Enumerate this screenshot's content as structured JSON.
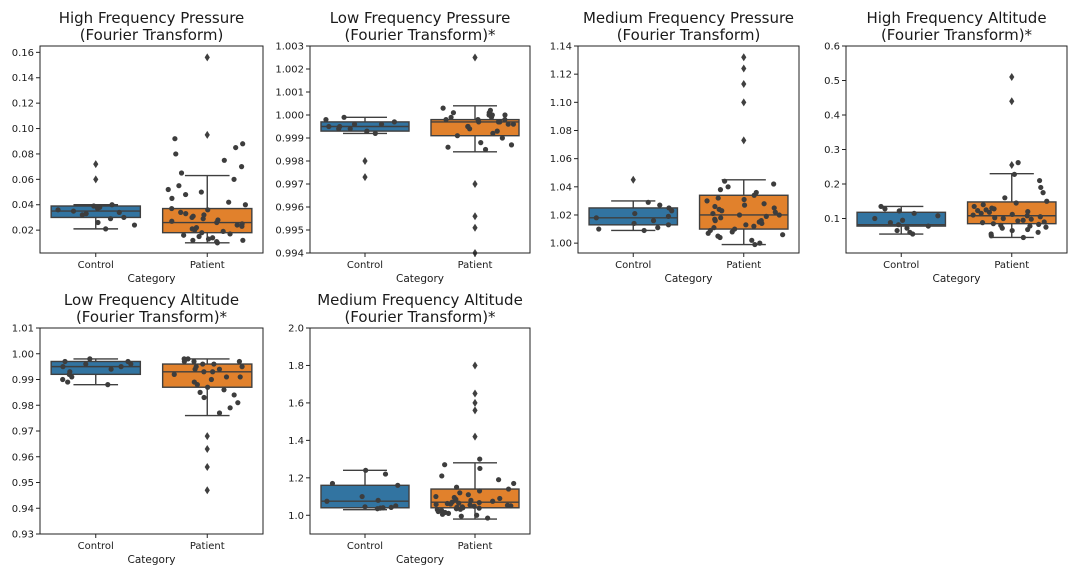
{
  "figure": {
    "background": "#ffffff",
    "colors": {
      "Control": "#3274a1",
      "Patient": "#e1812c",
      "points": "#3d3d3d",
      "lines": "#3f3f3f"
    }
  },
  "chart_data": [
    {
      "type": "box",
      "title": [
        "High Frequency Pressure",
        "(Fourier Transform)"
      ],
      "xlabel": "Category",
      "categories": [
        "Control",
        "Patient"
      ],
      "ylim": [
        0.002,
        0.165
      ],
      "yticks": [
        0.02,
        0.04,
        0.06,
        0.08,
        0.1,
        0.12,
        0.14,
        0.16
      ],
      "ytick_labels": [
        "0.02",
        "0.04",
        "0.06",
        "0.08",
        "0.10",
        "0.12",
        "0.14",
        "0.16"
      ],
      "boxes": [
        {
          "category": "Control",
          "q1": 0.03,
          "median": 0.035,
          "q3": 0.039,
          "whisker_low": 0.021,
          "whisker_high": 0.04,
          "outliers": [
            0.06,
            0.072
          ],
          "points": [
            0.021,
            0.024,
            0.026,
            0.029,
            0.03,
            0.032,
            0.033,
            0.034,
            0.035,
            0.036,
            0.037,
            0.038,
            0.039,
            0.04
          ]
        },
        {
          "category": "Patient",
          "q1": 0.018,
          "median": 0.026,
          "q3": 0.037,
          "whisker_low": 0.01,
          "whisker_high": 0.063,
          "outliers": [
            0.095,
            0.156
          ],
          "points": [
            0.01,
            0.011,
            0.012,
            0.012,
            0.013,
            0.014,
            0.015,
            0.016,
            0.017,
            0.018,
            0.019,
            0.02,
            0.021,
            0.022,
            0.023,
            0.024,
            0.025,
            0.026,
            0.027,
            0.028,
            0.029,
            0.03,
            0.031,
            0.032,
            0.033,
            0.034,
            0.036,
            0.037,
            0.04,
            0.042,
            0.045,
            0.048,
            0.05,
            0.052,
            0.055,
            0.06,
            0.065,
            0.07,
            0.075,
            0.08,
            0.085,
            0.088,
            0.092
          ]
        }
      ]
    },
    {
      "type": "box",
      "title": [
        "Low Frequency Pressure",
        "(Fourier Transform)*"
      ],
      "xlabel": "Category",
      "categories": [
        "Control",
        "Patient"
      ],
      "ylim": [
        0.994,
        1.003
      ],
      "yticks": [
        0.994,
        0.995,
        0.996,
        0.997,
        0.998,
        0.999,
        1.0,
        1.001,
        1.002,
        1.003
      ],
      "ytick_labels": [
        "0.994",
        "0.995",
        "0.996",
        "0.997",
        "0.998",
        "0.999",
        "1.000",
        "1.001",
        "1.002",
        "1.003"
      ],
      "boxes": [
        {
          "category": "Control",
          "q1": 0.9993,
          "median": 0.9995,
          "q3": 0.9997,
          "whisker_low": 0.9992,
          "whisker_high": 0.9999,
          "outliers": [
            0.998,
            0.9973
          ],
          "points": [
            0.9992,
            0.9993,
            0.9994,
            0.9994,
            0.9995,
            0.9995,
            0.9996,
            0.9996,
            0.9997,
            0.9998,
            0.9999
          ]
        },
        {
          "category": "Patient",
          "q1": 0.9991,
          "median": 0.9997,
          "q3": 0.9998,
          "whisker_low": 0.9984,
          "whisker_high": 1.0004,
          "outliers": [
            0.997,
            0.9956,
            0.9951,
            0.994,
            1.0025
          ],
          "points": [
            0.9985,
            0.9986,
            0.9987,
            0.9988,
            0.999,
            0.9991,
            0.9992,
            0.9993,
            0.9994,
            0.9995,
            0.9995,
            0.9996,
            0.9996,
            0.9997,
            0.9997,
            0.9997,
            0.9998,
            0.9998,
            0.9998,
            0.9999,
            0.9999,
            1.0,
            1.0,
            1.0,
            1.0001,
            1.0001,
            1.0002,
            1.0003
          ]
        }
      ]
    },
    {
      "type": "box",
      "title": [
        "Medium Frequency Pressure",
        "(Fourier Transform)"
      ],
      "xlabel": "Category",
      "categories": [
        "Control",
        "Patient"
      ],
      "ylim": [
        0.993,
        1.14
      ],
      "yticks": [
        1.0,
        1.02,
        1.04,
        1.06,
        1.08,
        1.1,
        1.12,
        1.14
      ],
      "ytick_labels": [
        "1.00",
        "1.02",
        "1.04",
        "1.06",
        "1.08",
        "1.10",
        "1.12",
        "1.14"
      ],
      "boxes": [
        {
          "category": "Control",
          "q1": 1.013,
          "median": 1.018,
          "q3": 1.025,
          "whisker_low": 1.009,
          "whisker_high": 1.03,
          "outliers": [
            1.045
          ],
          "points": [
            1.009,
            1.01,
            1.011,
            1.013,
            1.014,
            1.016,
            1.018,
            1.019,
            1.021,
            1.023,
            1.025,
            1.027,
            1.029
          ]
        },
        {
          "category": "Patient",
          "q1": 1.01,
          "median": 1.02,
          "q3": 1.034,
          "whisker_low": 0.999,
          "whisker_high": 1.045,
          "outliers": [
            1.073,
            1.1,
            1.113,
            1.124,
            1.132
          ],
          "points": [
            0.999,
            1.0,
            1.002,
            1.004,
            1.005,
            1.006,
            1.007,
            1.008,
            1.009,
            1.01,
            1.011,
            1.012,
            1.013,
            1.014,
            1.015,
            1.016,
            1.016,
            1.017,
            1.018,
            1.019,
            1.02,
            1.02,
            1.021,
            1.022,
            1.023,
            1.024,
            1.025,
            1.026,
            1.027,
            1.028,
            1.03,
            1.031,
            1.032,
            1.034,
            1.036,
            1.038,
            1.04,
            1.042,
            1.044
          ]
        }
      ]
    },
    {
      "type": "box",
      "title": [
        "High Frequency Altitude",
        "(Fourier Transform)*"
      ],
      "xlabel": "Category",
      "categories": [
        "Control",
        "Patient"
      ],
      "ylim": [
        0.0,
        0.6
      ],
      "yticks": [
        0.1,
        0.2,
        0.3,
        0.4,
        0.5,
        0.6
      ],
      "ytick_labels": [
        "0.1",
        "0.2",
        "0.3",
        "0.4",
        "0.5",
        "0.6"
      ],
      "boxes": [
        {
          "category": "Control",
          "q1": 0.078,
          "median": 0.082,
          "q3": 0.118,
          "whisker_low": 0.055,
          "whisker_high": 0.135,
          "outliers": [],
          "points": [
            0.055,
            0.06,
            0.065,
            0.072,
            0.078,
            0.082,
            0.088,
            0.095,
            0.1,
            0.108,
            0.115,
            0.122,
            0.128,
            0.135
          ]
        },
        {
          "category": "Patient",
          "q1": 0.085,
          "median": 0.108,
          "q3": 0.148,
          "whisker_low": 0.045,
          "whisker_high": 0.23,
          "outliers": [
            0.255,
            0.44,
            0.51
          ],
          "points": [
            0.045,
            0.05,
            0.055,
            0.06,
            0.065,
            0.068,
            0.072,
            0.075,
            0.078,
            0.08,
            0.083,
            0.085,
            0.088,
            0.09,
            0.093,
            0.095,
            0.098,
            0.1,
            0.102,
            0.105,
            0.108,
            0.11,
            0.112,
            0.115,
            0.118,
            0.12,
            0.123,
            0.125,
            0.128,
            0.13,
            0.135,
            0.14,
            0.145,
            0.15,
            0.16,
            0.175,
            0.19,
            0.21,
            0.228,
            0.262
          ]
        }
      ]
    },
    {
      "type": "box",
      "title": [
        "Low Frequency Altitude",
        "(Fourier Transform)*"
      ],
      "xlabel": "Category",
      "categories": [
        "Control",
        "Patient"
      ],
      "ylim": [
        0.93,
        1.01
      ],
      "yticks": [
        0.93,
        0.94,
        0.95,
        0.96,
        0.97,
        0.98,
        0.99,
        1.0,
        1.01
      ],
      "ytick_labels": [
        "0.93",
        "0.94",
        "0.95",
        "0.96",
        "0.97",
        "0.98",
        "0.99",
        "1.00",
        "1.01"
      ],
      "boxes": [
        {
          "category": "Control",
          "q1": 0.992,
          "median": 0.995,
          "q3": 0.997,
          "whisker_low": 0.988,
          "whisker_high": 0.998,
          "outliers": [],
          "points": [
            0.988,
            0.989,
            0.99,
            0.991,
            0.992,
            0.993,
            0.994,
            0.995,
            0.995,
            0.996,
            0.996,
            0.997,
            0.997,
            0.998
          ]
        },
        {
          "category": "Patient",
          "q1": 0.987,
          "median": 0.993,
          "q3": 0.996,
          "whisker_low": 0.976,
          "whisker_high": 0.998,
          "outliers": [
            0.968,
            0.963,
            0.956,
            0.947
          ],
          "points": [
            0.977,
            0.979,
            0.981,
            0.983,
            0.984,
            0.985,
            0.986,
            0.987,
            0.988,
            0.989,
            0.99,
            0.991,
            0.991,
            0.992,
            0.993,
            0.993,
            0.994,
            0.994,
            0.995,
            0.995,
            0.996,
            0.996,
            0.997,
            0.997,
            0.997,
            0.998,
            0.998
          ]
        }
      ]
    },
    {
      "type": "box",
      "title": [
        "Medium Frequency Altitude",
        "(Fourier Transform)*"
      ],
      "xlabel": "Category",
      "categories": [
        "Control",
        "Patient"
      ],
      "ylim": [
        0.9,
        2.0
      ],
      "yticks": [
        1.0,
        1.2,
        1.4,
        1.6,
        1.8,
        2.0
      ],
      "ytick_labels": [
        "1.0",
        "1.2",
        "1.4",
        "1.6",
        "1.8",
        "2.0"
      ],
      "boxes": [
        {
          "category": "Control",
          "q1": 1.04,
          "median": 1.075,
          "q3": 1.16,
          "whisker_low": 1.03,
          "whisker_high": 1.24,
          "outliers": [],
          "points": [
            1.035,
            1.038,
            1.04,
            1.042,
            1.045,
            1.05,
            1.075,
            1.08,
            1.1,
            1.16,
            1.17,
            1.22,
            1.24
          ]
        },
        {
          "category": "Patient",
          "q1": 1.04,
          "median": 1.07,
          "q3": 1.14,
          "whisker_low": 0.98,
          "whisker_high": 1.28,
          "outliers": [
            1.42,
            1.56,
            1.6,
            1.65,
            1.8
          ],
          "points": [
            0.985,
            0.995,
            1.0,
            1.005,
            1.01,
            1.015,
            1.02,
            1.025,
            1.03,
            1.032,
            1.035,
            1.038,
            1.04,
            1.042,
            1.045,
            1.048,
            1.05,
            1.053,
            1.055,
            1.058,
            1.06,
            1.063,
            1.065,
            1.068,
            1.07,
            1.075,
            1.08,
            1.085,
            1.09,
            1.095,
            1.1,
            1.11,
            1.12,
            1.13,
            1.14,
            1.15,
            1.17,
            1.19,
            1.21,
            1.25,
            1.27,
            1.3
          ]
        }
      ]
    }
  ]
}
